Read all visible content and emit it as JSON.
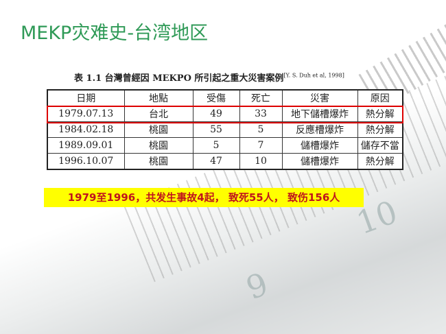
{
  "title": "MEKP灾难史-台湾地区",
  "table": {
    "caption": "表 1.1 台灣曾經因 MEKPO 所引起之重大災害案例",
    "citation": "[Y. S. Duh et al, 1998]",
    "headers": [
      "日期",
      "地點",
      "受傷",
      "死亡",
      "災害",
      "原因"
    ],
    "rows": [
      [
        "1979.07.13",
        "台北",
        "49",
        "33",
        "地下儲槽爆炸",
        "熱分解"
      ],
      [
        "1984.02.18",
        "桃園",
        "55",
        "5",
        "反應槽爆炸",
        "熱分解"
      ],
      [
        "1989.09.01",
        "桃園",
        "5",
        "7",
        "儲槽爆炸",
        "儲存不當"
      ],
      [
        "1996.10.07",
        "桃園",
        "47",
        "10",
        "儲槽爆炸",
        "熱分解"
      ]
    ],
    "highlighted_row": 0
  },
  "summary": "1979至1996，共发生事故4起， 致死55人， 致伤156人",
  "colors": {
    "title": "#2f9a57",
    "highlight_box": "#dd0000",
    "summary_bg": "#ffff00",
    "summary_text": "#c0141c"
  }
}
